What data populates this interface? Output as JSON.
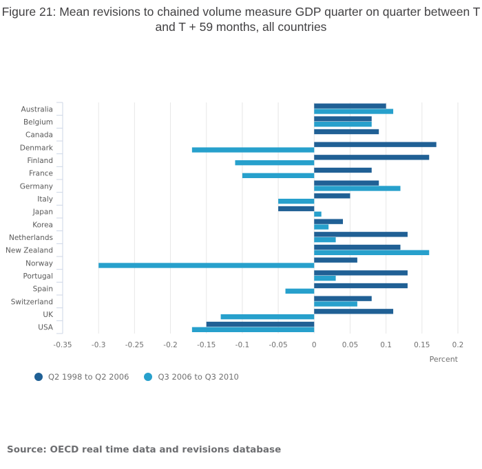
{
  "chart_data": {
    "type": "bar",
    "orientation": "horizontal",
    "title": "Figure 21: Mean revisions to chained volume measure GDP quarter on quarter between T and T + 59 months, all countries",
    "xlabel": "Percent",
    "ylabel": "",
    "xlim": [
      -0.35,
      0.2
    ],
    "xticks": [
      -0.35,
      -0.3,
      -0.25,
      -0.2,
      -0.15,
      -0.1,
      -0.05,
      0,
      0.05,
      0.1,
      0.15,
      0.2
    ],
    "xtick_labels": [
      "-0.35",
      "-0.3",
      "-0.25",
      "-0.2",
      "-0.15",
      "-0.1",
      "-0.05",
      "0",
      "0.05",
      "0.1",
      "0.15",
      "0.2"
    ],
    "grid": "vertical",
    "legend_position": "bottom-left",
    "categories": [
      "Australia",
      "Belgium",
      "Canada",
      "Denmark",
      "Finland",
      "France",
      "Germany",
      "Italy",
      "Japan",
      "Korea",
      "Netherlands",
      "New Zealand",
      "Norway",
      "Portugal",
      "Spain",
      "Switzerland",
      "UK",
      "USA"
    ],
    "series": [
      {
        "name": "Q2 1998 to Q2 2006",
        "color": "#206095",
        "values": [
          0.1,
          0.08,
          0.09,
          0.17,
          0.16,
          0.08,
          0.09,
          0.05,
          -0.05,
          0.04,
          0.13,
          0.12,
          0.06,
          0.13,
          0.13,
          0.08,
          0.11,
          -0.15
        ]
      },
      {
        "name": "Q3 2006 to Q3 2010",
        "color": "#27a0cc",
        "values": [
          0.11,
          0.08,
          null,
          -0.17,
          -0.11,
          -0.1,
          0.12,
          -0.05,
          0.01,
          0.02,
          0.03,
          0.16,
          -0.3,
          0.03,
          -0.04,
          0.06,
          -0.13,
          -0.17
        ]
      }
    ]
  },
  "colors": {
    "title": "#414042",
    "gridline": "#e6e6e6",
    "axis": "#ccd6e6",
    "source": "#6d6e71"
  },
  "source": "Source: OECD real time data and revisions database"
}
